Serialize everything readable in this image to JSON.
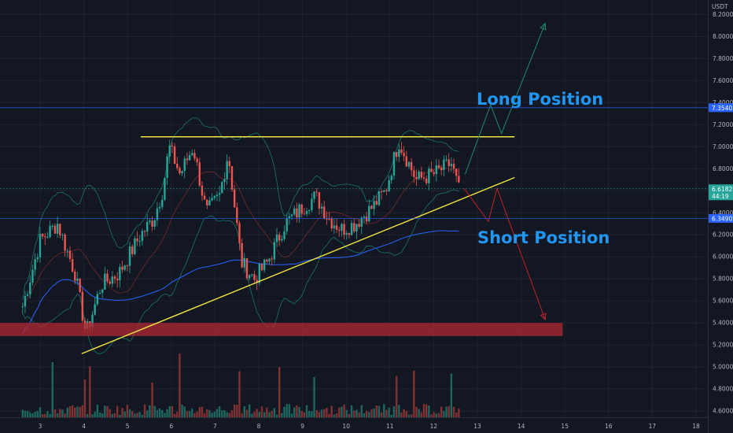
{
  "currency": "USDT",
  "chart_data": {
    "type": "candlestick",
    "x_ticks": [
      "3",
      "4",
      "5",
      "6",
      "7",
      "8",
      "9",
      "10",
      "11",
      "12",
      "13",
      "14",
      "15",
      "16",
      "17",
      "18"
    ],
    "price_ticks": [
      8.2,
      8.0,
      7.8,
      7.6,
      7.4,
      7.2,
      7.0,
      6.8,
      6.6,
      6.4,
      6.2,
      6.0,
      5.8,
      5.6,
      5.4,
      5.2,
      5.0,
      4.8,
      4.6
    ],
    "price_tick_labels": [
      "8.2000",
      "8.0000",
      "7.8000",
      "7.6000",
      "7.4000",
      "7.2000",
      "7.0000",
      "6.8000",
      "6.6000",
      "6.4000",
      "6.2000",
      "6.0000",
      "5.8000",
      "5.6000",
      "5.4000",
      "5.2000",
      "5.0000",
      "4.8000",
      "4.6000"
    ],
    "ylim": [
      4.55,
      8.28
    ],
    "price_tags": [
      {
        "value": 7.354,
        "label": "7.3540",
        "color": "#2962ff"
      },
      {
        "value": 6.618,
        "label": "6.6182",
        "sublabel": "44:19",
        "color": "#26a69a"
      },
      {
        "value": 6.349,
        "label": "6.3490",
        "color": "#2962ff"
      }
    ],
    "key_points": [
      {
        "day": 2.6,
        "price": 5.55
      },
      {
        "day": 3.0,
        "price": 6.15
      },
      {
        "day": 3.4,
        "price": 6.3
      },
      {
        "day": 3.8,
        "price": 5.85
      },
      {
        "day": 4.05,
        "price": 5.3
      },
      {
        "day": 4.4,
        "price": 5.75
      },
      {
        "day": 4.8,
        "price": 5.85
      },
      {
        "day": 5.3,
        "price": 6.2
      },
      {
        "day": 5.6,
        "price": 6.35
      },
      {
        "day": 5.8,
        "price": 6.6
      },
      {
        "day": 5.95,
        "price": 7.0
      },
      {
        "day": 6.2,
        "price": 6.75
      },
      {
        "day": 6.5,
        "price": 7.0
      },
      {
        "day": 6.8,
        "price": 6.4
      },
      {
        "day": 7.1,
        "price": 6.55
      },
      {
        "day": 7.3,
        "price": 6.95
      },
      {
        "day": 7.6,
        "price": 5.95
      },
      {
        "day": 7.9,
        "price": 5.8
      },
      {
        "day": 8.2,
        "price": 5.95
      },
      {
        "day": 8.6,
        "price": 6.3
      },
      {
        "day": 9.0,
        "price": 6.45
      },
      {
        "day": 9.3,
        "price": 6.55
      },
      {
        "day": 9.6,
        "price": 6.35
      },
      {
        "day": 9.9,
        "price": 6.25
      },
      {
        "day": 10.2,
        "price": 6.3
      },
      {
        "day": 10.6,
        "price": 6.45
      },
      {
        "day": 10.9,
        "price": 6.6
      },
      {
        "day": 11.2,
        "price": 7.05
      },
      {
        "day": 11.6,
        "price": 6.7
      },
      {
        "day": 12.0,
        "price": 6.75
      },
      {
        "day": 12.4,
        "price": 6.85
      },
      {
        "day": 12.62,
        "price": 6.55
      }
    ],
    "resistance_line": {
      "from": {
        "day": 5.3,
        "price": 7.09
      },
      "to": {
        "day": 13.85,
        "price": 7.09
      },
      "color": "#f0e442"
    },
    "support_line": {
      "from": {
        "day": 3.95,
        "price": 5.12
      },
      "to": {
        "day": 13.85,
        "price": 6.72
      },
      "color": "#f0e442"
    },
    "demand_zone": {
      "price_top": 5.4,
      "price_bottom": 5.28,
      "day_from": 2.05,
      "day_to": 14.95,
      "color": "#b22833"
    },
    "long_path": [
      {
        "day": 12.72,
        "price": 6.75
      },
      {
        "day": 13.3,
        "price": 7.38
      },
      {
        "day": 13.55,
        "price": 7.12
      },
      {
        "day": 14.55,
        "price": 8.12
      }
    ],
    "short_path": [
      {
        "day": 12.7,
        "price": 6.62
      },
      {
        "day": 13.25,
        "price": 6.32
      },
      {
        "day": 13.45,
        "price": 6.62
      },
      {
        "day": 14.55,
        "price": 5.43
      }
    ],
    "annotations": [
      "Long Position",
      "Short Position"
    ]
  }
}
